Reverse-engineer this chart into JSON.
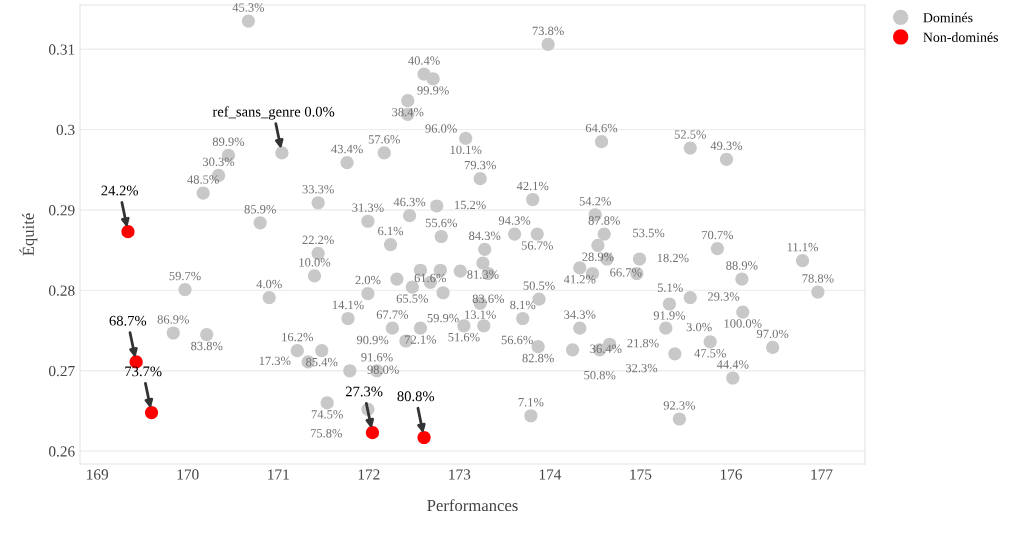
{
  "chart_data": {
    "type": "scatter",
    "xlabel": "Performances",
    "ylabel": "Équité",
    "xlim": [
      168.81,
      177.48
    ],
    "ylim": [
      0.2584,
      0.3155
    ],
    "xticks": [
      169,
      170,
      171,
      172,
      173,
      174,
      175,
      176,
      177
    ],
    "yticks": [
      0.26,
      0.27,
      0.28,
      0.29,
      0.3,
      0.31
    ],
    "grid": "y",
    "legend": "top right",
    "marker": "circle",
    "series": [
      {
        "name": "Dominés",
        "color": "#c8c8c8",
        "x": [
          170.67,
          173.98,
          172.61,
          172.71,
          172.43,
          172.43,
          173.07,
          174.57,
          175.55,
          175.95,
          170.45,
          170.34,
          170.17,
          171.76,
          172.17,
          173.23,
          171.44,
          170.8,
          171.99,
          172.45,
          172.75,
          173.81,
          174.5,
          173.61,
          173.86,
          172.8,
          174.6,
          174.53,
          172.24,
          171.44,
          173.28,
          173.26,
          173.32,
          172.57,
          172.79,
          173.01,
          172.68,
          174.33,
          174.47,
          174.63,
          174.99,
          174.96,
          175.85,
          176.79,
          176.12,
          176.96,
          171.4,
          170.9,
          171.99,
          169.97,
          172.31,
          172.48,
          172.82,
          173.23,
          173.88,
          171.77,
          169.84,
          170.21,
          172.26,
          172.57,
          172.41,
          173.05,
          173.27,
          173.7,
          174.33,
          173.87,
          174.25,
          174.66,
          174.55,
          175.32,
          175.55,
          176.13,
          175.28,
          175.77,
          175.38,
          176.46,
          171.21,
          171.48,
          171.33,
          171.79,
          172.09,
          176.02,
          171.54,
          171.99,
          173.79,
          175.43
        ],
        "values": [
          0.3135,
          0.3106,
          0.3069,
          0.3063,
          0.3036,
          0.3019,
          0.2989,
          0.2985,
          0.2977,
          0.2963,
          0.2968,
          0.2943,
          0.2921,
          0.2959,
          0.2971,
          0.2939,
          0.2909,
          0.2884,
          0.2886,
          0.2893,
          0.2905,
          0.2913,
          0.2894,
          0.287,
          0.287,
          0.2867,
          0.287,
          0.2856,
          0.2857,
          0.2846,
          0.2851,
          0.2834,
          0.2821,
          0.2825,
          0.2825,
          0.2824,
          0.281,
          0.2828,
          0.2821,
          0.2839,
          0.2839,
          0.2821,
          0.2852,
          0.2837,
          0.2814,
          0.2798,
          0.2818,
          0.2791,
          0.2796,
          0.2801,
          0.2814,
          0.2804,
          0.2797,
          0.2784,
          0.2789,
          0.2765,
          0.2747,
          0.2745,
          0.2753,
          0.2753,
          0.2737,
          0.2756,
          0.2756,
          0.2765,
          0.2753,
          0.273,
          0.2726,
          0.2733,
          0.2726,
          0.2783,
          0.2791,
          0.2773,
          0.2753,
          0.2736,
          0.2721,
          0.2729,
          0.2725,
          0.2725,
          0.2711,
          0.27,
          0.27,
          0.2691,
          0.266,
          0.2652,
          0.2644,
          0.264
        ]
      },
      {
        "name": "Non-dominés",
        "color": "#ff0000",
        "x": [
          169.34,
          169.43,
          169.6,
          172.04,
          172.61
        ],
        "values": [
          0.2873,
          0.2711,
          0.2648,
          0.2623,
          0.2617
        ]
      },
      {
        "color": "#c8c8c8",
        "x": [
          171.04
        ],
        "values": [
          0.2971
        ]
      }
    ],
    "annotations": [
      {
        "text": "ref_sans_genre 0.0%",
        "x": 171.04,
        "y": 0.2971
      },
      {
        "text": "24.2%",
        "x": 169.34,
        "y": 0.2873
      },
      {
        "text": "68.7%",
        "x": 169.43,
        "y": 0.2711
      },
      {
        "text": "73.7%",
        "x": 169.6,
        "y": 0.2648
      },
      {
        "text": "27.3%",
        "x": 172.04,
        "y": 0.2623
      },
      {
        "text": "80.8%",
        "x": 172.61,
        "y": 0.2617
      },
      {
        "text": "45.3%",
        "x": 170.67,
        "y": 0.3135
      },
      {
        "text": "73.8%",
        "x": 173.98,
        "y": 0.3106
      },
      {
        "text": "40.4%",
        "x": 172.61,
        "y": 0.3069
      },
      {
        "text": "99.9%",
        "x": 172.71,
        "y": 0.3063
      },
      {
        "text": "38.4%",
        "x": 172.43,
        "y": 0.3036
      },
      {
        "text": "96.0%",
        "x": 172.43,
        "y": 0.3019
      },
      {
        "text": "10.1%",
        "x": 173.07,
        "y": 0.2989
      },
      {
        "text": "64.6%",
        "x": 174.57,
        "y": 0.2985
      },
      {
        "text": "52.5%",
        "x": 175.55,
        "y": 0.2977
      },
      {
        "text": "49.3%",
        "x": 175.95,
        "y": 0.2963
      },
      {
        "text": "89.9%",
        "x": 170.45,
        "y": 0.2968
      },
      {
        "text": "30.3%",
        "x": 170.34,
        "y": 0.2943
      },
      {
        "text": "48.5%",
        "x": 170.17,
        "y": 0.2921
      },
      {
        "text": "43.4%",
        "x": 171.76,
        "y": 0.2959
      },
      {
        "text": "57.6%",
        "x": 172.17,
        "y": 0.2971
      },
      {
        "text": "79.3%",
        "x": 173.23,
        "y": 0.2939
      },
      {
        "text": "33.3%",
        "x": 171.44,
        "y": 0.2909
      },
      {
        "text": "85.9%",
        "x": 170.8,
        "y": 0.2884
      },
      {
        "text": "31.3%",
        "x": 171.99,
        "y": 0.2886
      },
      {
        "text": "46.3%",
        "x": 172.45,
        "y": 0.2893
      },
      {
        "text": "15.2%",
        "x": 172.75,
        "y": 0.2905
      },
      {
        "text": "42.1%",
        "x": 173.81,
        "y": 0.2913
      },
      {
        "text": "54.2%",
        "x": 174.5,
        "y": 0.2894
      },
      {
        "text": "94.3%",
        "x": 173.61,
        "y": 0.287
      },
      {
        "text": "56.7%",
        "x": 173.86,
        "y": 0.287
      },
      {
        "text": "55.6%",
        "x": 172.8,
        "y": 0.2867
      },
      {
        "text": "87.8%",
        "x": 174.6,
        "y": 0.287
      },
      {
        "text": "28.9%",
        "x": 174.53,
        "y": 0.2856
      },
      {
        "text": "6.1%",
        "x": 172.24,
        "y": 0.2857
      },
      {
        "text": "22.2%",
        "x": 171.44,
        "y": 0.2846
      },
      {
        "text": "84.3%",
        "x": 173.28,
        "y": 0.2851
      },
      {
        "text": "81.3%",
        "x": 173.26,
        "y": 0.2834
      },
      {
        "text": "83.6%",
        "x": 173.32,
        "y": 0.2821
      },
      {
        "text": "41.2%",
        "x": 174.33,
        "y": 0.2828
      },
      {
        "text": "66.7%",
        "x": 174.47,
        "y": 0.2821
      },
      {
        "text": "53.5%",
        "x": 174.63,
        "y": 0.2839
      },
      {
        "text": "18.2%",
        "x": 174.99,
        "y": 0.2839
      },
      {
        "text": "5.1%",
        "x": 174.96,
        "y": 0.2821
      },
      {
        "text": "70.7%",
        "x": 175.85,
        "y": 0.2852
      },
      {
        "text": "11.1%",
        "x": 176.79,
        "y": 0.2837
      },
      {
        "text": "88.9%",
        "x": 176.12,
        "y": 0.2814
      },
      {
        "text": "78.8%",
        "x": 176.96,
        "y": 0.2798
      },
      {
        "text": "10.0%",
        "x": 171.4,
        "y": 0.2818
      },
      {
        "text": "4.0%",
        "x": 170.9,
        "y": 0.2791
      },
      {
        "text": "2.0%",
        "x": 171.99,
        "y": 0.2796
      },
      {
        "text": "59.7%",
        "x": 169.97,
        "y": 0.2801
      },
      {
        "text": "61.6%",
        "x": 172.31,
        "y": 0.2814
      },
      {
        "text": "65.5%",
        "x": 172.48,
        "y": 0.2804
      },
      {
        "text": "59.9%",
        "x": 172.82,
        "y": 0.2797
      },
      {
        "text": "13.1%",
        "x": 173.23,
        "y": 0.2784
      },
      {
        "text": "50.5%",
        "x": 173.88,
        "y": 0.2789
      },
      {
        "text": "14.1%",
        "x": 171.77,
        "y": 0.2765
      },
      {
        "text": "86.9%",
        "x": 169.84,
        "y": 0.2747
      },
      {
        "text": "83.8%",
        "x": 170.21,
        "y": 0.2745
      },
      {
        "text": "67.7%",
        "x": 172.26,
        "y": 0.2753
      },
      {
        "text": "72.1%",
        "x": 172.57,
        "y": 0.2753
      },
      {
        "text": "90.9%",
        "x": 172.41,
        "y": 0.2737
      },
      {
        "text": "51.6%",
        "x": 173.05,
        "y": 0.2756
      },
      {
        "text": "56.6%",
        "x": 173.27,
        "y": 0.2756
      },
      {
        "text": "8.1%",
        "x": 173.7,
        "y": 0.2765
      },
      {
        "text": "34.3%",
        "x": 174.33,
        "y": 0.2753
      },
      {
        "text": "82.8%",
        "x": 173.87,
        "y": 0.273
      },
      {
        "text": "36.4%",
        "x": 174.25,
        "y": 0.2726
      },
      {
        "text": "21.8%",
        "x": 174.66,
        "y": 0.2733
      },
      {
        "text": "50.8%",
        "x": 174.55,
        "y": 0.2726
      },
      {
        "text": "91.9%",
        "x": 175.32,
        "y": 0.2783
      },
      {
        "text": "29.3%",
        "x": 175.55,
        "y": 0.2791
      },
      {
        "text": "100.0%",
        "x": 176.13,
        "y": 0.2773
      },
      {
        "text": "3.0%",
        "x": 175.28,
        "y": 0.2753
      },
      {
        "text": "47.5%",
        "x": 175.77,
        "y": 0.2736
      },
      {
        "text": "32.3%",
        "x": 175.38,
        "y": 0.2721
      },
      {
        "text": "97.0%",
        "x": 176.46,
        "y": 0.2729
      },
      {
        "text": "16.2%",
        "x": 171.21,
        "y": 0.2725
      },
      {
        "text": "85.4%",
        "x": 171.48,
        "y": 0.2725
      },
      {
        "text": "17.3%",
        "x": 171.33,
        "y": 0.2711
      },
      {
        "text": "98.0%",
        "x": 171.79,
        "y": 0.27
      },
      {
        "text": "91.6%",
        "x": 172.09,
        "y": 0.27
      },
      {
        "text": "44.4%",
        "x": 176.02,
        "y": 0.2691
      },
      {
        "text": "74.5%",
        "x": 171.54,
        "y": 0.266
      },
      {
        "text": "75.8%",
        "x": 171.99,
        "y": 0.2652
      },
      {
        "text": "7.1%",
        "x": 173.79,
        "y": 0.2644
      },
      {
        "text": "92.3%",
        "x": 175.43,
        "y": 0.264
      }
    ]
  }
}
